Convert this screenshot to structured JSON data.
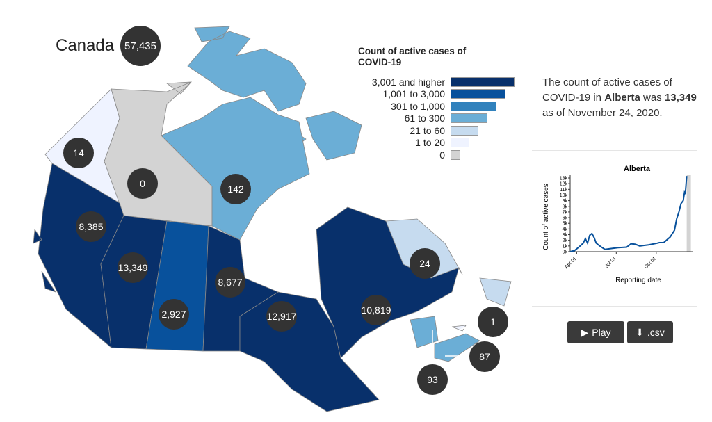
{
  "country": {
    "name": "Canada",
    "total": "57,435"
  },
  "regions": [
    {
      "name": "Yukon",
      "value": "14",
      "color": "#eff3ff"
    },
    {
      "name": "Northwest Territories",
      "value": "0",
      "color": "#d3d3d3"
    },
    {
      "name": "Nunavut",
      "value": "142",
      "color": "#6baed6"
    },
    {
      "name": "British Columbia",
      "value": "8,385",
      "color": "#08306b"
    },
    {
      "name": "Alberta",
      "value": "13,349",
      "color": "#08306b"
    },
    {
      "name": "Saskatchewan",
      "value": "2,927",
      "color": "#08519c"
    },
    {
      "name": "Manitoba",
      "value": "8,677",
      "color": "#08306b"
    },
    {
      "name": "Ontario",
      "value": "12,917",
      "color": "#08306b"
    },
    {
      "name": "Quebec",
      "value": "10,819",
      "color": "#08306b"
    },
    {
      "name": "Newfoundland and Labrador",
      "value": "24",
      "color": "#c6dbef"
    },
    {
      "name": "Prince Edward Island",
      "value": "1",
      "color": "#eff3ff"
    },
    {
      "name": "Nova Scotia",
      "value": "87",
      "color": "#6baed6"
    },
    {
      "name": "New Brunswick",
      "value": "93",
      "color": "#6baed6"
    }
  ],
  "legend": {
    "title": "Count of active cases of COVID-19",
    "items": [
      {
        "label": "3,001 and higher",
        "color": "#08306b"
      },
      {
        "label": "1,001 to 3,000",
        "color": "#08519c"
      },
      {
        "label": "301 to 1,000",
        "color": "#3182bd"
      },
      {
        "label": "61 to 300",
        "color": "#6baed6"
      },
      {
        "label": "21 to 60",
        "color": "#c6dbef"
      },
      {
        "label": "1 to 20",
        "color": "#eff3ff"
      },
      {
        "label": "0",
        "color": "#d3d3d3"
      }
    ]
  },
  "panel": {
    "pre": "The count of active cases of COVID-19 in ",
    "province": "Alberta",
    "mid": " was ",
    "value": "13,349",
    "post": " as of November 24, 2020."
  },
  "chart_data": {
    "type": "line",
    "title": "Alberta",
    "xlabel": "Reporting date",
    "ylabel": "Count of active cases",
    "yticks": [
      "0k",
      "1k",
      "2k",
      "3k",
      "4k",
      "5k",
      "6k",
      "7k",
      "8k",
      "9k",
      "10k",
      "11k",
      "12k",
      "13k"
    ],
    "xticks": [
      "Apr 01",
      "Jul 01",
      "Oct 01"
    ],
    "ylim": [
      0,
      13349
    ],
    "x_days": [
      0,
      10,
      20,
      30,
      35,
      40,
      45,
      50,
      55,
      60,
      70,
      80,
      90,
      110,
      130,
      140,
      150,
      160,
      170,
      180,
      200,
      205,
      215,
      230,
      240,
      245,
      250,
      255,
      260,
      263,
      265,
      268
    ],
    "values": [
      0,
      200,
      800,
      1500,
      2300,
      1500,
      2900,
      3200,
      2500,
      1500,
      900,
      400,
      500,
      700,
      800,
      1400,
      1300,
      1000,
      1100,
      1200,
      1500,
      1600,
      1600,
      2600,
      3800,
      5800,
      7000,
      8500,
      9000,
      10500,
      10300,
      13349
    ]
  },
  "buttons": {
    "play": "Play",
    "csv": ".csv"
  }
}
